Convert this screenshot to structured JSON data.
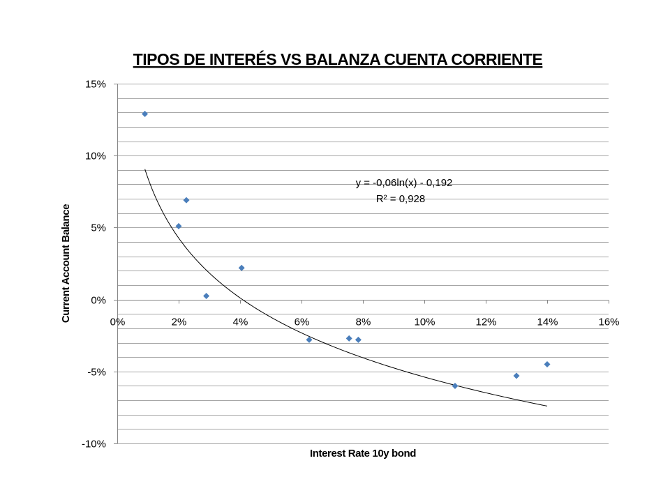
{
  "chart_data": {
    "type": "scatter",
    "title": "TIPOS DE INTERÉS VS BALANZA CUENTA CORRIENTE",
    "xlabel": "Interest Rate 10y bond",
    "ylabel": "Current Account Balance",
    "xlim": [
      0,
      16
    ],
    "ylim": [
      -10,
      15
    ],
    "x_ticks": [
      "0%",
      "2%",
      "4%",
      "6%",
      "8%",
      "10%",
      "12%",
      "14%",
      "16%"
    ],
    "y_ticks": [
      "15%",
      "10%",
      "5%",
      "0%",
      "-5%",
      "-10%"
    ],
    "grid": true,
    "series": [
      {
        "color": "#4a7ebb",
        "points": [
          {
            "x": 0.9,
            "y": 12.9
          },
          {
            "x": 2.0,
            "y": 5.1
          },
          {
            "x": 2.25,
            "y": 6.9
          },
          {
            "x": 2.9,
            "y": 0.25
          },
          {
            "x": 4.05,
            "y": 2.2
          },
          {
            "x": 6.25,
            "y": -2.8
          },
          {
            "x": 7.55,
            "y": -2.7
          },
          {
            "x": 7.85,
            "y": -2.8
          },
          {
            "x": 11.0,
            "y": -6.0
          },
          {
            "x": 13.0,
            "y": -5.3
          },
          {
            "x": 14.0,
            "y": -4.5
          }
        ]
      }
    ],
    "trendline": {
      "type": "logarithmic",
      "equation": "y = -0,06ln(x) - 0,192",
      "r2_label": "R² = 0,928",
      "x_range": [
        0.9,
        14.0
      ]
    }
  }
}
